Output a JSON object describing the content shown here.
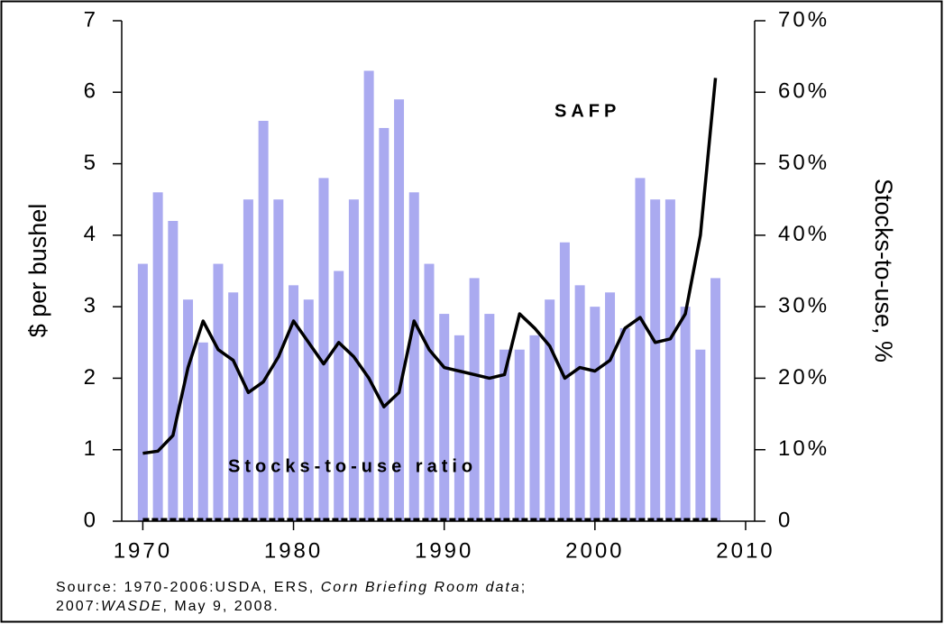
{
  "chart_data": {
    "type": "bar-line",
    "ylabel": "$ per bushel",
    "y2label": "Stocks-to-use, %",
    "x": [
      1970,
      1971,
      1972,
      1973,
      1974,
      1975,
      1976,
      1977,
      1978,
      1979,
      1980,
      1981,
      1982,
      1983,
      1984,
      1985,
      1986,
      1987,
      1988,
      1989,
      1990,
      1991,
      1992,
      1993,
      1994,
      1995,
      1996,
      1997,
      1998,
      1999,
      2000,
      2001,
      2002,
      2003,
      2004,
      2005,
      2006,
      2007,
      2008
    ],
    "series": [
      {
        "name": "Stocks-to-use ratio",
        "kind": "bar",
        "axis": "y2",
        "color": "#aaaaf0",
        "values": [
          36,
          46,
          42,
          31,
          25,
          36,
          32,
          45,
          56,
          45,
          33,
          31,
          48,
          35,
          45,
          63,
          55,
          59,
          46,
          36,
          29,
          26,
          34,
          29,
          24,
          24,
          26,
          31,
          39,
          33,
          30,
          32,
          27,
          48,
          45,
          45,
          30,
          24,
          34
        ]
      },
      {
        "name": "SAFP",
        "kind": "line",
        "color": "#000000",
        "values": [
          0.95,
          0.98,
          1.2,
          2.15,
          2.8,
          2.4,
          2.25,
          1.8,
          1.95,
          2.3,
          2.8,
          2.5,
          2.2,
          2.5,
          2.3,
          2.0,
          1.6,
          1.8,
          2.8,
          2.4,
          2.15,
          2.1,
          2.05,
          2.0,
          2.05,
          2.9,
          2.7,
          2.45,
          2.0,
          2.15,
          2.1,
          2.25,
          2.7,
          2.85,
          2.5,
          2.55,
          2.9,
          4.0,
          6.2
        ]
      }
    ],
    "xlim": [
      1968.6,
      2010.6
    ],
    "xticks": [
      1970,
      1980,
      1990,
      2000,
      2010
    ],
    "ylim": [
      0,
      7
    ],
    "yticks": [
      0,
      1,
      2,
      3,
      4,
      5,
      6,
      7
    ],
    "y2lim": [
      0,
      70
    ],
    "y2ticks": [
      0,
      {
        "value": 10,
        "label": "10%"
      },
      {
        "value": 20,
        "label": "20%"
      },
      {
        "value": 30,
        "label": "30%"
      },
      {
        "value": 40,
        "label": "40%"
      },
      {
        "value": 50,
        "label": "50%"
      },
      {
        "value": 60,
        "label": "60%"
      },
      {
        "value": 70,
        "label": "70%"
      }
    ],
    "source": [
      [
        "Source: 1970-2006:USDA, ERS, ",
        "Corn Briefing Room data",
        ";"
      ],
      [
        "2007:",
        "WASDE",
        ", May 9, 2008."
      ]
    ]
  }
}
